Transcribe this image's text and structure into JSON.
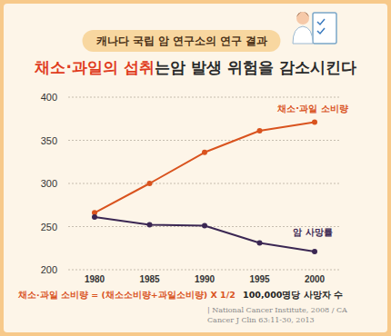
{
  "chart_data": {
    "type": "line",
    "subtitle": "캐나다 국립 암 연구소의 연구 결과",
    "title": [
      "채소·과일의 섭취",
      "는암 발생 위험을 감소시킨다"
    ],
    "categories": [
      "1980",
      "1985",
      "1990",
      "1995",
      "2000"
    ],
    "series": [
      {
        "name": "채소·과일 소비량",
        "color": "#d9531e",
        "marker": "circle",
        "values": [
          266,
          300,
          336,
          361,
          371
        ]
      },
      {
        "name": "암 사망률",
        "color": "#3b2753",
        "marker": "circle",
        "values": [
          261,
          252,
          251,
          231,
          221
        ]
      }
    ],
    "ylim": [
      200,
      400
    ],
    "yticks": [
      200,
      250,
      300,
      350,
      400
    ],
    "grid": true,
    "annotations": [
      "채소·과일 소비량 = (채소소비량+과일소비량) X 1/2",
      "100,000명당 사망자 수"
    ],
    "source": "| National Cancer Institute, 2008 / CA Cancer J Clin 63:11-30, 2013"
  }
}
